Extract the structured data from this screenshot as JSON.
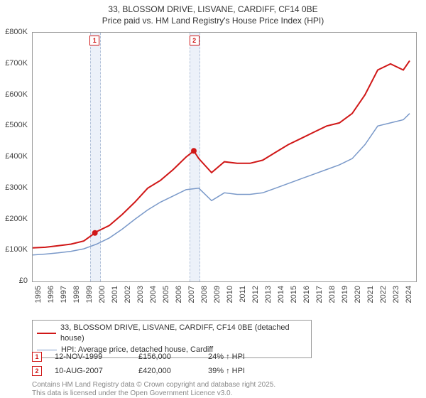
{
  "title": {
    "line1": "33, BLOSSOM DRIVE, LISVANE, CARDIFF, CF14 0BE",
    "line2": "Price paid vs. HM Land Registry's House Price Index (HPI)",
    "fontsize": 12,
    "color": "#333333"
  },
  "chart": {
    "type": "line",
    "plot_bg": "#ffffff",
    "border_color": "#999999",
    "grid_color": "#bbbbbb",
    "x": {
      "min": 1995,
      "max": 2025,
      "ticks": [
        1995,
        1996,
        1997,
        1998,
        1999,
        2000,
        2001,
        2002,
        2003,
        2004,
        2005,
        2006,
        2007,
        2008,
        2009,
        2010,
        2011,
        2012,
        2013,
        2014,
        2015,
        2016,
        2017,
        2018,
        2019,
        2020,
        2021,
        2022,
        2023,
        2024
      ],
      "label_fontsize": 11,
      "label_rotation": -90
    },
    "y": {
      "min": 0,
      "max": 800000,
      "tick_step": 100000,
      "ticks": [
        0,
        100000,
        200000,
        300000,
        400000,
        500000,
        600000,
        700000,
        800000
      ],
      "tick_labels": [
        "£0",
        "£100K",
        "£200K",
        "£300K",
        "£400K",
        "£500K",
        "£600K",
        "£700K",
        "£800K"
      ],
      "label_fontsize": 11
    },
    "bands": [
      {
        "id": 1,
        "start": 1999.5,
        "end": 2000.2,
        "border_color": "#b0c0d8",
        "fill": "rgba(180,200,230,0.25)"
      },
      {
        "id": 2,
        "start": 2007.3,
        "end": 2008.0,
        "border_color": "#b0c0d8",
        "fill": "rgba(180,200,230,0.25)"
      }
    ],
    "band_markers": [
      {
        "id": 1,
        "x": 1999.85,
        "color": "#d01717",
        "label": "1"
      },
      {
        "id": 2,
        "x": 2007.65,
        "color": "#d01717",
        "label": "2"
      }
    ],
    "series": [
      {
        "name": "price_paid",
        "label": "33, BLOSSOM DRIVE, LISVANE, CARDIFF, CF14 0BE (detached house)",
        "color": "#d01717",
        "width": 2,
        "x": [
          1995,
          1996,
          1997,
          1998,
          1999,
          1999.87,
          2000,
          2001,
          2002,
          2003,
          2004,
          2005,
          2006,
          2007,
          2007.61,
          2008,
          2009,
          2010,
          2011,
          2012,
          2013,
          2014,
          2015,
          2016,
          2017,
          2018,
          2019,
          2020,
          2021,
          2022,
          2023,
          2024,
          2024.5
        ],
        "y": [
          108000,
          110000,
          115000,
          120000,
          130000,
          156000,
          160000,
          180000,
          215000,
          255000,
          300000,
          325000,
          360000,
          400000,
          420000,
          395000,
          350000,
          385000,
          380000,
          380000,
          390000,
          415000,
          440000,
          460000,
          480000,
          500000,
          510000,
          540000,
          600000,
          680000,
          700000,
          680000,
          710000
        ]
      },
      {
        "name": "hpi",
        "label": "HPI: Average price, detached house, Cardiff",
        "color": "#7a99c9",
        "width": 1.5,
        "x": [
          1995,
          1996,
          1997,
          1998,
          1999,
          2000,
          2001,
          2002,
          2003,
          2004,
          2005,
          2006,
          2007,
          2008,
          2009,
          2010,
          2011,
          2012,
          2013,
          2014,
          2015,
          2016,
          2017,
          2018,
          2019,
          2020,
          2021,
          2022,
          2023,
          2024,
          2024.5
        ],
        "y": [
          85000,
          88000,
          92000,
          97000,
          105000,
          120000,
          140000,
          168000,
          200000,
          230000,
          255000,
          275000,
          295000,
          300000,
          260000,
          285000,
          280000,
          280000,
          285000,
          300000,
          315000,
          330000,
          345000,
          360000,
          375000,
          395000,
          440000,
          500000,
          510000,
          520000,
          540000
        ]
      }
    ],
    "sale_points": [
      {
        "x": 1999.87,
        "y": 156000,
        "color": "#d01717",
        "radius": 4
      },
      {
        "x": 2007.61,
        "y": 420000,
        "color": "#d01717",
        "radius": 4
      }
    ]
  },
  "legend": {
    "border_color": "#999999",
    "fontsize": 11,
    "items": [
      {
        "color": "#d01717",
        "width": 2,
        "label": "33, BLOSSOM DRIVE, LISVANE, CARDIFF, CF14 0BE (detached house)"
      },
      {
        "color": "#7a99c9",
        "width": 1.5,
        "label": "HPI: Average price, detached house, Cardiff"
      }
    ]
  },
  "sales": [
    {
      "marker": "1",
      "marker_color": "#d01717",
      "date": "12-NOV-1999",
      "price": "£156,000",
      "hpi": "24% ↑ HPI"
    },
    {
      "marker": "2",
      "marker_color": "#d01717",
      "date": "10-AUG-2007",
      "price": "£420,000",
      "hpi": "39% ↑ HPI"
    }
  ],
  "footer": {
    "line1": "Contains HM Land Registry data © Crown copyright and database right 2025.",
    "line2": "This data is licensed under the Open Government Licence v3.0.",
    "color": "#888888",
    "fontsize": 10
  }
}
